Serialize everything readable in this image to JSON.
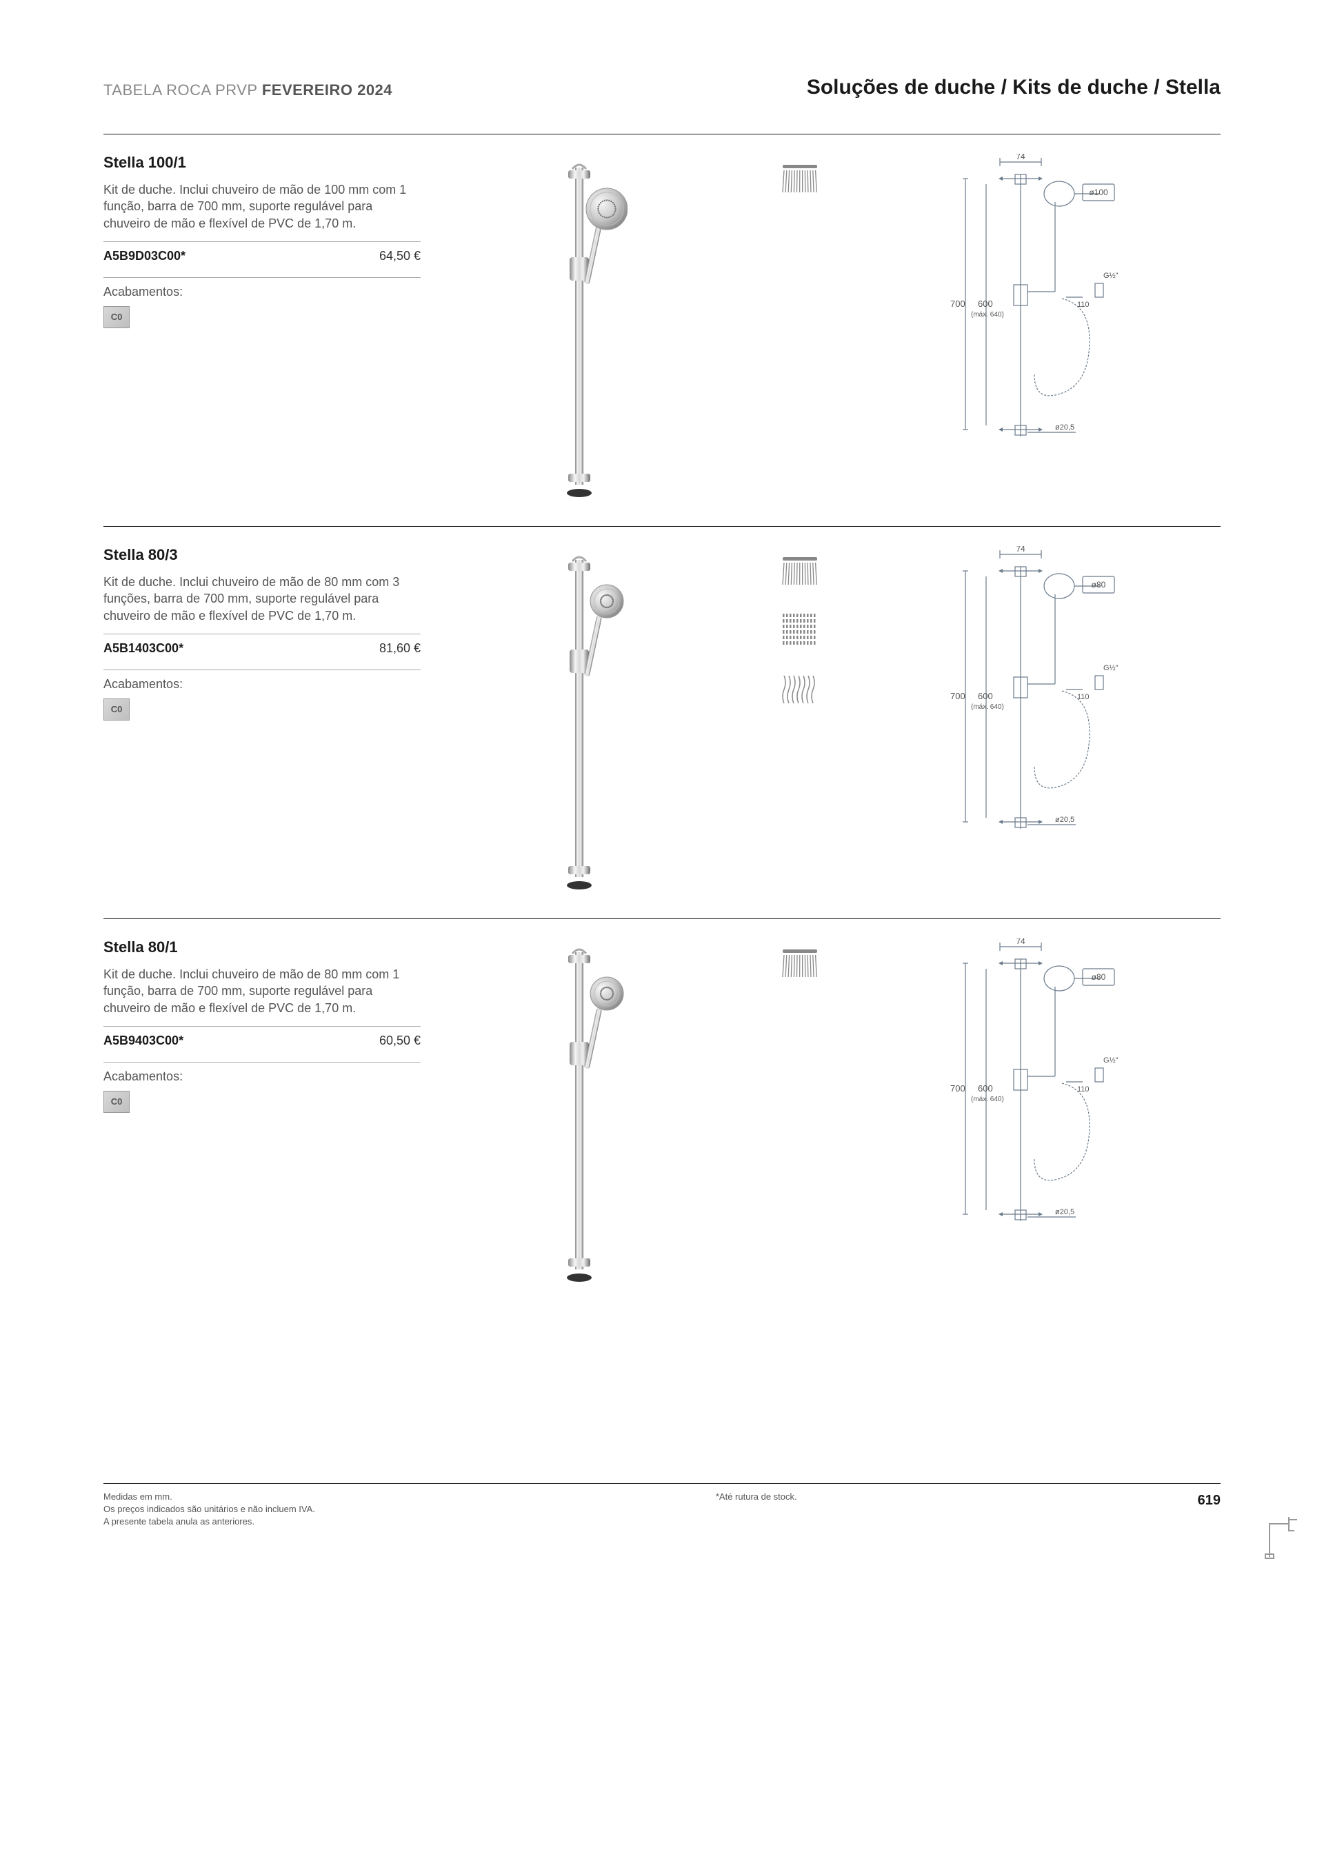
{
  "header": {
    "left_prefix": "TABELA ROCA PRVP",
    "left_bold": "FEVEREIRO 2024",
    "breadcrumb": "Soluções de duche / Kits de duche / Stella"
  },
  "products": [
    {
      "title": "Stella 100/1",
      "description": "Kit de duche. Inclui chuveiro de mão de 100 mm com 1 função, barra de 700 mm, suporte regulável para chuveiro de mão e flexível de PVC de 1,70 m.",
      "code": "A5B9D03C00*",
      "price": "64,50 €",
      "finish_label": "Acabamentos:",
      "finish_code": "C0",
      "sprays": 1,
      "tech": {
        "width_top": "74",
        "head_dia": "ø100",
        "bar_h": "700",
        "bar_inner": "600",
        "bar_max": "(máx. 640)",
        "conn": "G½\"",
        "hose_mark": "110",
        "base_dia": "ø20,5"
      }
    },
    {
      "title": "Stella 80/3",
      "description": "Kit de duche. Inclui chuveiro de mão de 80 mm com 3 funções, barra de 700 mm, suporte regulável para chuveiro de mão e flexível de PVC de 1,70 m.",
      "code": "A5B1403C00*",
      "price": "81,60 €",
      "finish_label": "Acabamentos:",
      "finish_code": "C0",
      "sprays": 3,
      "tech": {
        "width_top": "74",
        "head_dia": "ø80",
        "bar_h": "700",
        "bar_inner": "600",
        "bar_max": "(máx. 640)",
        "conn": "G½\"",
        "hose_mark": "110",
        "base_dia": "ø20,5"
      }
    },
    {
      "title": "Stella 80/1",
      "description": "Kit de duche. Inclui chuveiro de mão de 80 mm com 1 função, barra de 700 mm, suporte regulável para chuveiro de mão e flexível de PVC de 1,70 m.",
      "code": "A5B9403C00*",
      "price": "60,50 €",
      "finish_label": "Acabamentos:",
      "finish_code": "C0",
      "sprays": 1,
      "tech": {
        "width_top": "74",
        "head_dia": "ø80",
        "bar_h": "700",
        "bar_inner": "600",
        "bar_max": "(máx. 640)",
        "conn": "G½\"",
        "hose_mark": "110",
        "base_dia": "ø20,5"
      }
    }
  ],
  "footer": {
    "line1": "Medidas em mm.",
    "line2": "Os preços indicados são unitários e não incluem IVA.",
    "line3": "A presente tabela anula as anteriores.",
    "mid": "*Até rutura de stock.",
    "page": "619"
  },
  "colors": {
    "text": "#1a1a1a",
    "muted": "#555555",
    "rule": "#1a1a1a",
    "tech_line": "#6a7a8a"
  }
}
